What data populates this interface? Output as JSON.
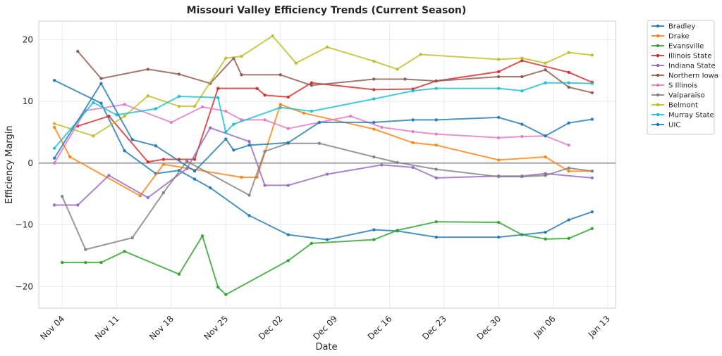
{
  "chart_data": {
    "type": "line",
    "title": "Missouri Valley Efficiency Trends (Current Season)",
    "xlabel": "Date",
    "ylabel": "Efficiency Margin",
    "xlim": [
      "2023-11-01",
      "2024-01-14"
    ],
    "ylim": [
      -23.5,
      23
    ],
    "x_ticks": [
      {
        "date": "2023-11-04",
        "label": "Nov 04"
      },
      {
        "date": "2023-11-11",
        "label": "Nov 11"
      },
      {
        "date": "2023-11-18",
        "label": "Nov 18"
      },
      {
        "date": "2023-11-25",
        "label": "Nov 25"
      },
      {
        "date": "2023-12-02",
        "label": "Dec 02"
      },
      {
        "date": "2023-12-09",
        "label": "Dec 09"
      },
      {
        "date": "2023-12-16",
        "label": "Dec 16"
      },
      {
        "date": "2023-12-23",
        "label": "Dec 23"
      },
      {
        "date": "2023-12-30",
        "label": "Dec 30"
      },
      {
        "date": "2024-01-06",
        "label": "Jan 06"
      },
      {
        "date": "2024-01-13",
        "label": "Jan 13"
      }
    ],
    "y_ticks": [
      -20,
      -10,
      0,
      10,
      20
    ],
    "grid": true,
    "zero_line": true,
    "legend_position": "outside-top-right",
    "series": [
      {
        "name": "Bradley",
        "color": "#1f77b4",
        "points": [
          [
            "2023-11-03",
            13.4
          ],
          [
            "2023-11-09",
            9.7
          ],
          [
            "2023-11-12",
            2.0
          ],
          [
            "2023-11-16",
            -1.7
          ],
          [
            "2023-11-19",
            -1.2
          ],
          [
            "2023-11-21",
            -2.6
          ],
          [
            "2023-11-23",
            -4.0
          ],
          [
            "2023-11-28",
            -8.5
          ],
          [
            "2023-12-03",
            -11.6
          ],
          [
            "2023-12-08",
            -12.4
          ],
          [
            "2023-12-14",
            -10.8
          ],
          [
            "2023-12-17",
            -11.0
          ],
          [
            "2023-12-22",
            -12.0
          ],
          [
            "2023-12-30",
            -12.0
          ],
          [
            "2024-01-02",
            -11.6
          ],
          [
            "2024-01-05",
            -11.2
          ],
          [
            "2024-01-08",
            -9.2
          ],
          [
            "2024-01-11",
            -7.9
          ]
        ]
      },
      {
        "name": "Drake",
        "color": "#ff7f0e",
        "points": [
          [
            "2023-11-03",
            5.8
          ],
          [
            "2023-11-05",
            1.0
          ],
          [
            "2023-11-14",
            -5.3
          ],
          [
            "2023-11-17",
            -0.2
          ],
          [
            "2023-11-27",
            -2.3
          ],
          [
            "2023-11-29",
            -2.3
          ],
          [
            "2023-12-02",
            9.5
          ],
          [
            "2023-12-05",
            8.1
          ],
          [
            "2023-12-14",
            5.5
          ],
          [
            "2023-12-19",
            3.3
          ],
          [
            "2023-12-22",
            2.9
          ],
          [
            "2023-12-30",
            0.5
          ],
          [
            "2024-01-05",
            1.0
          ],
          [
            "2024-01-08",
            -1.3
          ],
          [
            "2024-01-11",
            -1.3
          ]
        ]
      },
      {
        "name": "Evansville",
        "color": "#2ca02c",
        "points": [
          [
            "2023-11-04",
            -16.1
          ],
          [
            "2023-11-07",
            -16.1
          ],
          [
            "2023-11-09",
            -16.1
          ],
          [
            "2023-11-12",
            -14.3
          ],
          [
            "2023-11-19",
            -18.0
          ],
          [
            "2023-11-22",
            -11.8
          ],
          [
            "2023-11-24",
            -20.1
          ],
          [
            "2023-11-25",
            -21.3
          ],
          [
            "2023-12-03",
            -15.8
          ],
          [
            "2023-12-06",
            -13.0
          ],
          [
            "2023-12-14",
            -12.4
          ],
          [
            "2023-12-17",
            -10.9
          ],
          [
            "2023-12-22",
            -9.5
          ],
          [
            "2023-12-30",
            -9.6
          ],
          [
            "2024-01-02",
            -11.6
          ],
          [
            "2024-01-05",
            -12.3
          ],
          [
            "2024-01-08",
            -12.2
          ],
          [
            "2024-01-11",
            -10.6
          ]
        ]
      },
      {
        "name": "Illinois State",
        "color": "#d62728",
        "points": [
          [
            "2023-11-06",
            6.0
          ],
          [
            "2023-11-10",
            7.6
          ],
          [
            "2023-11-15",
            0.2
          ],
          [
            "2023-11-17",
            0.6
          ],
          [
            "2023-11-19",
            0.6
          ],
          [
            "2023-11-21",
            0.6
          ],
          [
            "2023-11-24",
            12.1
          ],
          [
            "2023-11-29",
            12.1
          ],
          [
            "2023-11-30",
            11.0
          ],
          [
            "2023-12-03",
            10.7
          ],
          [
            "2023-12-06",
            13.0
          ],
          [
            "2023-12-14",
            11.9
          ],
          [
            "2023-12-19",
            12.0
          ],
          [
            "2023-12-22",
            13.3
          ],
          [
            "2023-12-30",
            14.8
          ],
          [
            "2024-01-02",
            16.6
          ],
          [
            "2024-01-08",
            14.7
          ],
          [
            "2024-01-11",
            13.1
          ]
        ]
      },
      {
        "name": "Indiana State",
        "color": "#9467bd",
        "points": [
          [
            "2023-11-03",
            -6.8
          ],
          [
            "2023-11-06",
            -6.8
          ],
          [
            "2023-11-10",
            -2.0
          ],
          [
            "2023-11-15",
            -5.6
          ],
          [
            "2023-11-20",
            -0.9
          ],
          [
            "2023-11-23",
            5.7
          ],
          [
            "2023-11-28",
            3.5
          ],
          [
            "2023-11-30",
            -3.6
          ],
          [
            "2023-12-03",
            -3.6
          ],
          [
            "2023-12-08",
            -1.8
          ],
          [
            "2023-12-15",
            -0.3
          ],
          [
            "2023-12-19",
            -0.7
          ],
          [
            "2023-12-22",
            -2.4
          ],
          [
            "2023-12-30",
            -2.1
          ],
          [
            "2024-01-02",
            -2.1
          ],
          [
            "2024-01-05",
            -1.7
          ],
          [
            "2024-01-11",
            -2.4
          ]
        ]
      },
      {
        "name": "Northern Iowa",
        "color": "#8c564b",
        "points": [
          [
            "2023-11-06",
            18.1
          ],
          [
            "2023-11-09",
            13.7
          ],
          [
            "2023-11-15",
            15.2
          ],
          [
            "2023-11-19",
            14.4
          ],
          [
            "2023-11-23",
            12.9
          ],
          [
            "2023-11-26",
            17.0
          ],
          [
            "2023-11-27",
            14.3
          ],
          [
            "2023-12-02",
            14.3
          ],
          [
            "2023-12-06",
            12.6
          ],
          [
            "2023-12-14",
            13.6
          ],
          [
            "2023-12-18",
            13.6
          ],
          [
            "2023-12-22",
            13.3
          ],
          [
            "2023-12-30",
            14.0
          ],
          [
            "2024-01-02",
            14.0
          ],
          [
            "2024-01-05",
            15.1
          ],
          [
            "2024-01-08",
            12.3
          ],
          [
            "2024-01-11",
            11.4
          ]
        ]
      },
      {
        "name": "S Illinois",
        "color": "#e377c2",
        "points": [
          [
            "2023-11-03",
            0.0
          ],
          [
            "2023-11-07",
            8.5
          ],
          [
            "2023-11-12",
            9.5
          ],
          [
            "2023-11-18",
            6.6
          ],
          [
            "2023-11-22",
            9.1
          ],
          [
            "2023-11-25",
            8.4
          ],
          [
            "2023-11-27",
            7.0
          ],
          [
            "2023-11-30",
            7.0
          ],
          [
            "2023-12-03",
            5.6
          ],
          [
            "2023-12-07",
            6.6
          ],
          [
            "2023-12-11",
            7.6
          ],
          [
            "2023-12-15",
            5.8
          ],
          [
            "2023-12-19",
            5.1
          ],
          [
            "2023-12-22",
            4.7
          ],
          [
            "2023-12-30",
            4.1
          ],
          [
            "2024-01-02",
            4.3
          ],
          [
            "2024-01-05",
            4.4
          ],
          [
            "2024-01-08",
            2.9
          ]
        ]
      },
      {
        "name": "Valparaiso",
        "color": "#7f7f7f",
        "points": [
          [
            "2023-11-04",
            -5.4
          ],
          [
            "2023-11-07",
            -14.0
          ],
          [
            "2023-11-13",
            -12.1
          ],
          [
            "2023-11-17",
            -4.8
          ],
          [
            "2023-11-20",
            0.3
          ],
          [
            "2023-11-28",
            -5.2
          ],
          [
            "2023-11-30",
            1.9
          ],
          [
            "2023-12-03",
            3.2
          ],
          [
            "2023-12-07",
            3.2
          ],
          [
            "2023-12-14",
            1.0
          ],
          [
            "2023-12-17",
            0.1
          ],
          [
            "2023-12-22",
            -1.0
          ],
          [
            "2023-12-30",
            -2.2
          ],
          [
            "2024-01-02",
            -2.2
          ],
          [
            "2024-01-05",
            -2.0
          ],
          [
            "2024-01-08",
            -0.8
          ],
          [
            "2024-01-11",
            -1.3
          ]
        ]
      },
      {
        "name": "Belmont",
        "color": "#bcbd22",
        "points": [
          [
            "2023-11-03",
            6.4
          ],
          [
            "2023-11-08",
            4.4
          ],
          [
            "2023-11-12",
            7.6
          ],
          [
            "2023-11-15",
            10.9
          ],
          [
            "2023-11-19",
            9.2
          ],
          [
            "2023-11-21",
            9.2
          ],
          [
            "2023-11-25",
            17.0
          ],
          [
            "2023-11-27",
            17.3
          ],
          [
            "2023-12-01",
            20.6
          ],
          [
            "2023-12-04",
            16.2
          ],
          [
            "2023-12-08",
            18.8
          ],
          [
            "2023-12-14",
            16.5
          ],
          [
            "2023-12-17",
            15.2
          ],
          [
            "2023-12-20",
            17.6
          ],
          [
            "2023-12-30",
            16.8
          ],
          [
            "2024-01-02",
            17.0
          ],
          [
            "2024-01-05",
            16.2
          ],
          [
            "2024-01-08",
            17.9
          ],
          [
            "2024-01-11",
            17.5
          ]
        ]
      },
      {
        "name": "Murray State",
        "color": "#17becf",
        "points": [
          [
            "2023-11-03",
            2.4
          ],
          [
            "2023-11-08",
            9.8
          ],
          [
            "2023-11-11",
            7.8
          ],
          [
            "2023-11-16",
            8.8
          ],
          [
            "2023-11-19",
            10.8
          ],
          [
            "2023-11-24",
            10.6
          ],
          [
            "2023-11-25",
            5.0
          ],
          [
            "2023-11-26",
            6.3
          ],
          [
            "2023-12-02",
            9.0
          ],
          [
            "2023-12-06",
            8.4
          ],
          [
            "2023-12-14",
            10.4
          ],
          [
            "2023-12-19",
            11.7
          ],
          [
            "2023-12-22",
            12.1
          ],
          [
            "2023-12-30",
            12.1
          ],
          [
            "2024-01-02",
            11.7
          ],
          [
            "2024-01-05",
            13.0
          ],
          [
            "2024-01-08",
            13.0
          ],
          [
            "2024-01-11",
            12.9
          ]
        ]
      },
      {
        "name": "UIC",
        "color": "#1f77b4",
        "points": [
          [
            "2023-11-03",
            0.8
          ],
          [
            "2023-11-09",
            12.9
          ],
          [
            "2023-11-13",
            3.8
          ],
          [
            "2023-11-16",
            2.8
          ],
          [
            "2023-11-21",
            -1.3
          ],
          [
            "2023-11-25",
            3.9
          ],
          [
            "2023-11-26",
            2.1
          ],
          [
            "2023-11-28",
            2.9
          ],
          [
            "2023-12-03",
            3.3
          ],
          [
            "2023-12-07",
            6.6
          ],
          [
            "2023-12-14",
            6.6
          ],
          [
            "2023-12-19",
            7.0
          ],
          [
            "2023-12-22",
            7.0
          ],
          [
            "2023-12-30",
            7.4
          ],
          [
            "2024-01-02",
            6.3
          ],
          [
            "2024-01-05",
            4.4
          ],
          [
            "2024-01-08",
            6.5
          ],
          [
            "2024-01-11",
            7.1
          ]
        ]
      }
    ]
  }
}
